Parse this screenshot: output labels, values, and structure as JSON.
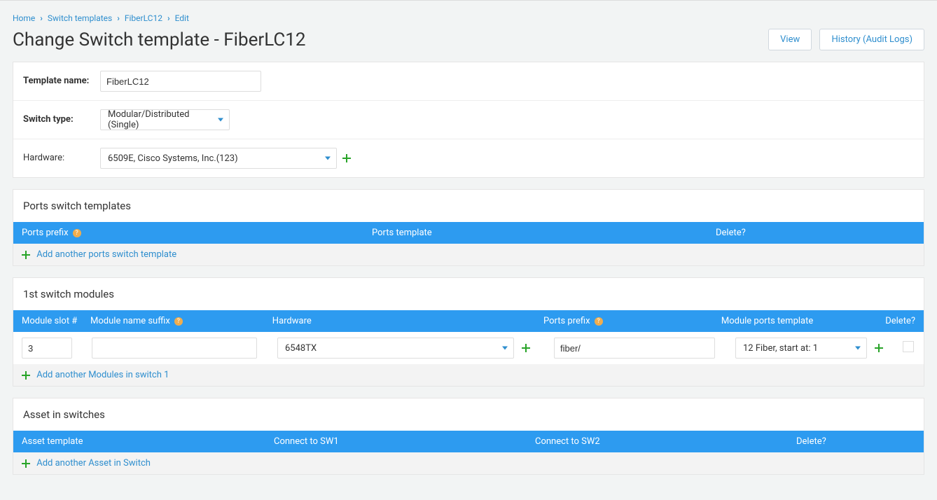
{
  "breadcrumb": {
    "home": "Home",
    "templates": "Switch templates",
    "item": "FiberLC12",
    "current": "Edit"
  },
  "page_title": "Change Switch template - FiberLC12",
  "actions": {
    "view": "View",
    "history": "History (Audit Logs)"
  },
  "form": {
    "template_name_label": "Template name:",
    "template_name_value": "FiberLC12",
    "switch_type_label": "Switch type:",
    "switch_type_value": "Modular/Distributed (Single)",
    "hardware_label": "Hardware:",
    "hardware_value": "6509E, Cisco Systems, Inc.(123)"
  },
  "ports_section": {
    "title": "Ports switch templates",
    "cols": {
      "prefix": "Ports prefix",
      "template": "Ports template",
      "delete": "Delete?"
    },
    "add_link": "Add another ports switch template"
  },
  "modules_section": {
    "title": "1st switch modules",
    "cols": {
      "slot": "Module slot #",
      "suffix": "Module name suffix",
      "hardware": "Hardware",
      "prefix": "Ports prefix",
      "ports_template": "Module ports template",
      "delete": "Delete?"
    },
    "row": {
      "slot": "3",
      "suffix": "",
      "hardware": "6548TX",
      "prefix": "fiber/",
      "ports_template": "12 Fiber, start at: 1"
    },
    "add_link": "Add another Modules in switch 1"
  },
  "assets_section": {
    "title": "Asset in switches",
    "cols": {
      "asset_template": "Asset template",
      "sw1": "Connect to SW1",
      "sw2": "Connect to SW2",
      "delete": "Delete?"
    },
    "add_link": "Add another Asset in Switch"
  },
  "help_glyph": "?"
}
